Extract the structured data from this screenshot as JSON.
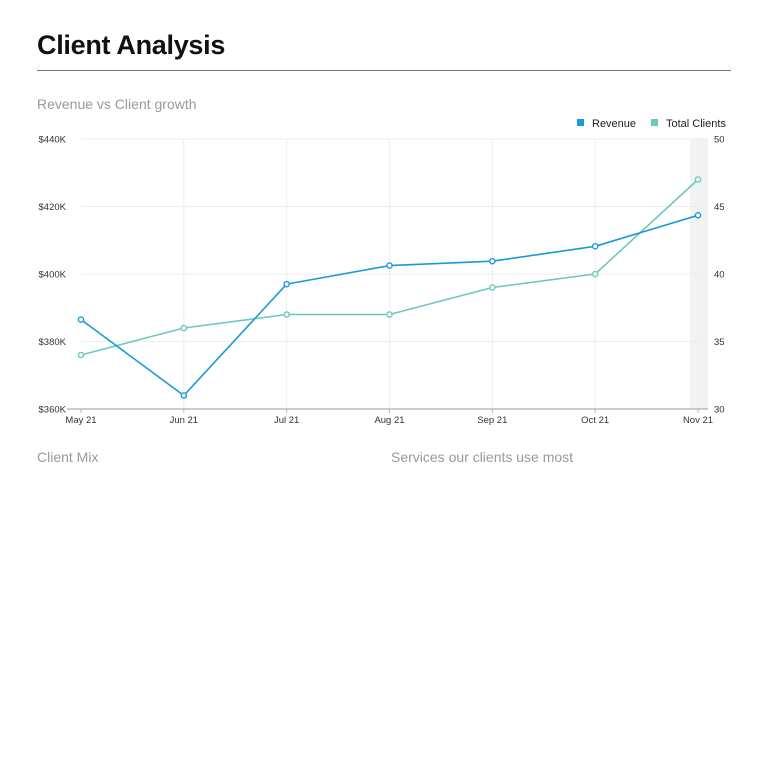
{
  "page": {
    "title": "Client Analysis",
    "chart_heading": "Revenue vs Client growth",
    "client_mix_heading": "Client Mix",
    "services_heading": "Services our clients use most"
  },
  "colors": {
    "revenue": "#1a9ad6",
    "total_clients": "#6cc9c0",
    "grid": "#ededed",
    "highlight": "#f2f2f2"
  },
  "chart_data": {
    "type": "line",
    "title": "Revenue vs Client growth",
    "categories": [
      "May 21",
      "Jun 21",
      "Jul 21",
      "Aug 21",
      "Sep 21",
      "Oct 21",
      "Nov 21"
    ],
    "series": [
      {
        "name": "Revenue",
        "axis": "left",
        "values": [
          386500,
          364000,
          397000,
          402500,
          403800,
          408200,
          417400
        ]
      },
      {
        "name": "Total Clients",
        "axis": "right",
        "values": [
          34,
          36,
          37,
          37,
          39,
          40,
          47
        ]
      }
    ],
    "y_left": {
      "ylim": [
        360000,
        440000
      ],
      "ticks": [
        "$360K",
        "$380K",
        "$400K",
        "$420K",
        "$440K"
      ]
    },
    "y_right": {
      "ylim": [
        30,
        50
      ],
      "ticks": [
        "30",
        "35",
        "40",
        "45",
        "50"
      ]
    },
    "legend": "top-right",
    "grid": true,
    "highlighted_category": "Nov 21"
  }
}
